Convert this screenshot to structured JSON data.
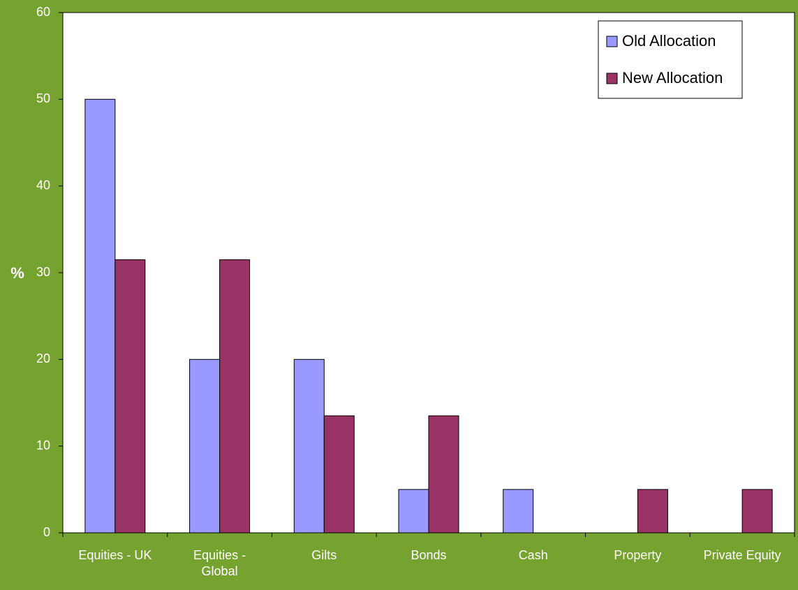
{
  "chart_data": {
    "type": "bar",
    "title": "",
    "xlabel": "",
    "ylabel": "%",
    "ylim": [
      0,
      60
    ],
    "yticks": [
      0,
      10,
      20,
      30,
      40,
      50,
      60
    ],
    "grid": false,
    "legend_position": "top-right",
    "categories": [
      "Equities - UK",
      "Equities - Global",
      "Gilts",
      "Bonds",
      "Cash",
      "Property",
      "Private Equity"
    ],
    "series": [
      {
        "name": "Old Allocation",
        "color": "#9999ff",
        "values": [
          50,
          20,
          20,
          5,
          5,
          0,
          0
        ]
      },
      {
        "name": "New Allocation",
        "color": "#993366",
        "values": [
          31.5,
          31.5,
          13.5,
          13.5,
          0,
          5,
          5
        ]
      }
    ]
  },
  "colors": {
    "background": "#76a22f",
    "plot_area": "#ffffff",
    "axis_text": "#ffffff",
    "axis_line": "#000000"
  }
}
